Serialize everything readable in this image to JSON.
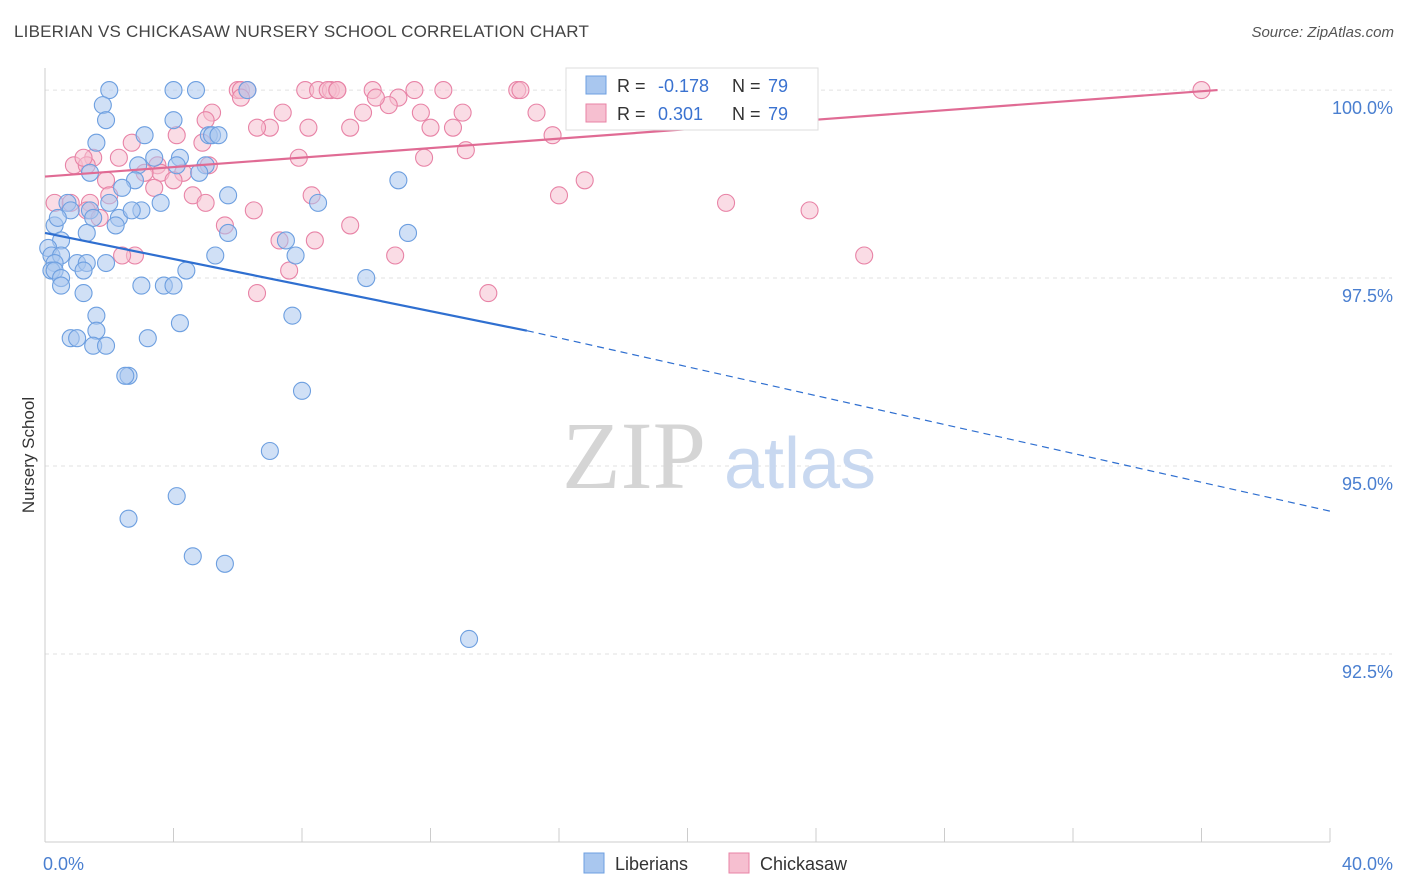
{
  "title": "LIBERIAN VS CHICKASAW NURSERY SCHOOL CORRELATION CHART",
  "source": "Source: ZipAtlas.com",
  "watermark": {
    "zip": "ZIP",
    "atlas": "atlas"
  },
  "colors": {
    "blue": "#6d9fe0",
    "blue_fill": "#a9c7ef",
    "blue_line": "#2f6fd0",
    "pink": "#e883a6",
    "pink_fill": "#f6bfd0",
    "pink_line": "#e06b94",
    "label": "#4a7fd0",
    "grid": "#dddddd"
  },
  "stats_legend": [
    {
      "r_label": "R =",
      "r_value": "-0.178",
      "n_label": "N =",
      "n_value": "79",
      "color": "blue"
    },
    {
      "r_label": "R =",
      "r_value": "0.301",
      "n_label": "N =",
      "n_value": "79",
      "color": "pink"
    }
  ],
  "chart_data": {
    "type": "scatter",
    "title": "LIBERIAN VS CHICKASAW NURSERY SCHOOL CORRELATION CHART",
    "xlabel": "",
    "ylabel": "Nursery School",
    "xlim": [
      0,
      40
    ],
    "ylim": [
      90.0,
      100.4
    ],
    "x_tick_labels": [
      "0.0%",
      "40.0%"
    ],
    "y_ticks": [
      92.5,
      95.0,
      97.5,
      100.0
    ],
    "y_tick_labels": [
      "92.5%",
      "95.0%",
      "97.5%",
      "100.0%"
    ],
    "grid": "horizontal dashed",
    "legend_position": "bottom-center",
    "series": [
      {
        "name": "Liberians",
        "color": "blue",
        "points": [
          [
            2.0,
            100.0
          ],
          [
            4.0,
            100.0
          ],
          [
            4.7,
            100.0
          ],
          [
            6.3,
            100.0
          ],
          [
            1.8,
            99.8
          ],
          [
            1.9,
            99.6
          ],
          [
            4.0,
            99.6
          ],
          [
            5.1,
            99.4
          ],
          [
            5.2,
            99.4
          ],
          [
            3.1,
            99.4
          ],
          [
            1.6,
            99.3
          ],
          [
            3.4,
            99.1
          ],
          [
            4.2,
            99.1
          ],
          [
            2.9,
            99.0
          ],
          [
            5.0,
            99.0
          ],
          [
            4.1,
            99.0
          ],
          [
            1.4,
            98.9
          ],
          [
            2.8,
            98.8
          ],
          [
            11.0,
            98.8
          ],
          [
            2.4,
            98.7
          ],
          [
            5.7,
            98.6
          ],
          [
            2.0,
            98.5
          ],
          [
            3.6,
            98.5
          ],
          [
            8.5,
            98.5
          ],
          [
            0.7,
            98.5
          ],
          [
            0.8,
            98.4
          ],
          [
            1.4,
            98.4
          ],
          [
            2.3,
            98.3
          ],
          [
            3.0,
            98.4
          ],
          [
            1.5,
            98.3
          ],
          [
            2.2,
            98.2
          ],
          [
            0.3,
            98.2
          ],
          [
            1.3,
            98.1
          ],
          [
            5.7,
            98.1
          ],
          [
            11.3,
            98.1
          ],
          [
            0.5,
            98.0
          ],
          [
            7.5,
            98.0
          ],
          [
            0.1,
            97.9
          ],
          [
            0.2,
            97.8
          ],
          [
            0.5,
            97.8
          ],
          [
            5.3,
            97.8
          ],
          [
            7.8,
            97.8
          ],
          [
            0.3,
            97.7
          ],
          [
            1.0,
            97.7
          ],
          [
            1.3,
            97.7
          ],
          [
            1.9,
            97.7
          ],
          [
            0.2,
            97.6
          ],
          [
            0.3,
            97.6
          ],
          [
            1.2,
            97.6
          ],
          [
            4.4,
            97.6
          ],
          [
            0.5,
            97.5
          ],
          [
            3.0,
            97.4
          ],
          [
            3.7,
            97.4
          ],
          [
            4.0,
            97.4
          ],
          [
            10.0,
            97.5
          ],
          [
            0.5,
            97.4
          ],
          [
            1.2,
            97.3
          ],
          [
            1.6,
            97.0
          ],
          [
            7.7,
            97.0
          ],
          [
            4.2,
            96.9
          ],
          [
            1.6,
            96.8
          ],
          [
            0.8,
            96.7
          ],
          [
            1.0,
            96.7
          ],
          [
            3.2,
            96.7
          ],
          [
            1.5,
            96.6
          ],
          [
            1.9,
            96.6
          ],
          [
            2.6,
            96.2
          ],
          [
            2.5,
            96.2
          ],
          [
            8.0,
            96.0
          ],
          [
            7.0,
            95.2
          ],
          [
            4.1,
            94.6
          ],
          [
            2.6,
            94.3
          ],
          [
            4.6,
            93.8
          ],
          [
            5.6,
            93.7
          ],
          [
            13.2,
            92.7
          ],
          [
            5.4,
            99.4
          ],
          [
            0.4,
            98.3
          ],
          [
            4.8,
            98.9
          ],
          [
            2.7,
            98.4
          ]
        ],
        "trend": {
          "x0": 0,
          "y0": 98.1,
          "x1_solid": 15,
          "y1_solid": 96.8,
          "x1_dashed": 40,
          "y1_dashed": 94.4
        }
      },
      {
        "name": "Chickasaw",
        "color": "pink",
        "points": [
          [
            6.0,
            100.0
          ],
          [
            6.1,
            100.0
          ],
          [
            6.3,
            100.0
          ],
          [
            8.1,
            100.0
          ],
          [
            8.5,
            100.0
          ],
          [
            8.9,
            100.0
          ],
          [
            8.8,
            100.0
          ],
          [
            9.1,
            100.0
          ],
          [
            10.2,
            100.0
          ],
          [
            11.5,
            100.0
          ],
          [
            12.4,
            100.0
          ],
          [
            14.7,
            100.0
          ],
          [
            16.5,
            100.0
          ],
          [
            36.0,
            100.0
          ],
          [
            6.1,
            99.9
          ],
          [
            11.0,
            99.9
          ],
          [
            10.7,
            99.8
          ],
          [
            5.2,
            99.7
          ],
          [
            7.4,
            99.7
          ],
          [
            9.9,
            99.7
          ],
          [
            11.7,
            99.7
          ],
          [
            13.0,
            99.7
          ],
          [
            15.3,
            99.7
          ],
          [
            5.0,
            99.6
          ],
          [
            7.0,
            99.5
          ],
          [
            8.2,
            99.5
          ],
          [
            9.5,
            99.5
          ],
          [
            12.0,
            99.5
          ],
          [
            15.8,
            99.4
          ],
          [
            4.1,
            99.4
          ],
          [
            4.9,
            99.3
          ],
          [
            2.7,
            99.3
          ],
          [
            13.1,
            99.2
          ],
          [
            1.5,
            99.1
          ],
          [
            2.3,
            99.1
          ],
          [
            7.9,
            99.1
          ],
          [
            11.8,
            99.1
          ],
          [
            5.1,
            99.0
          ],
          [
            3.5,
            99.0
          ],
          [
            0.9,
            99.0
          ],
          [
            1.3,
            99.0
          ],
          [
            4.3,
            98.9
          ],
          [
            3.6,
            98.9
          ],
          [
            4.0,
            98.8
          ],
          [
            16.8,
            98.8
          ],
          [
            1.9,
            98.8
          ],
          [
            3.4,
            98.7
          ],
          [
            8.3,
            98.6
          ],
          [
            4.6,
            98.6
          ],
          [
            0.3,
            98.5
          ],
          [
            1.4,
            98.5
          ],
          [
            5.0,
            98.5
          ],
          [
            16.0,
            98.6
          ],
          [
            21.2,
            98.5
          ],
          [
            23.8,
            98.4
          ],
          [
            6.5,
            98.4
          ],
          [
            1.3,
            98.4
          ],
          [
            1.7,
            98.3
          ],
          [
            5.6,
            98.2
          ],
          [
            9.5,
            98.2
          ],
          [
            7.3,
            98.0
          ],
          [
            10.9,
            97.8
          ],
          [
            2.8,
            97.8
          ],
          [
            2.4,
            97.8
          ],
          [
            8.4,
            98.0
          ],
          [
            25.5,
            97.8
          ],
          [
            7.6,
            97.6
          ],
          [
            6.6,
            97.3
          ],
          [
            13.8,
            97.3
          ],
          [
            0.8,
            98.5
          ],
          [
            2.0,
            98.6
          ],
          [
            6.6,
            99.5
          ],
          [
            3.1,
            98.9
          ],
          [
            1.2,
            99.1
          ],
          [
            9.1,
            100.0
          ],
          [
            14.8,
            100.0
          ],
          [
            17.0,
            100.0
          ],
          [
            10.3,
            99.9
          ],
          [
            12.7,
            99.5
          ]
        ],
        "trend": {
          "x0": 0,
          "y0": 98.85,
          "x1_solid": 36.5,
          "y1_solid": 100.0
        }
      }
    ]
  }
}
